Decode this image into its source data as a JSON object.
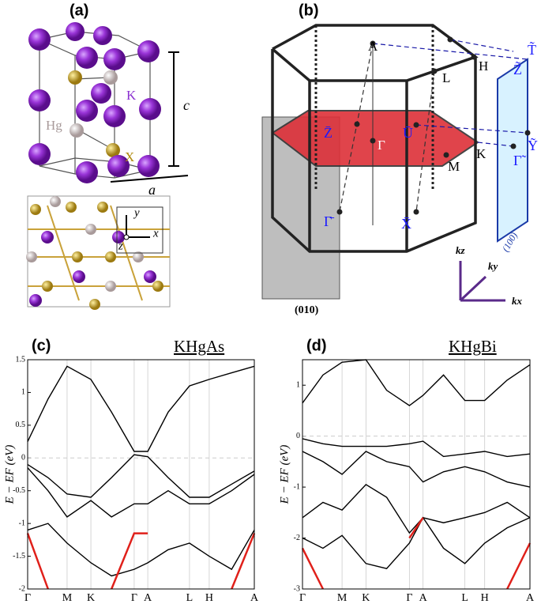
{
  "panel_a": {
    "label": "(a)",
    "c": "c",
    "a": "a",
    "atoms": {
      "K": "K",
      "Hg": "Hg",
      "X": "X"
    },
    "axes": {
      "y": "y",
      "x": "x",
      "z": "z"
    }
  },
  "panel_b": {
    "label": "(b)",
    "points": [
      "A",
      "L",
      "H",
      "K",
      "M",
      "Γ"
    ],
    "surface_points": [
      "Z̄",
      "Ū",
      "X̄",
      "Γ̄"
    ],
    "side_points": [
      "T̃",
      "Z̃",
      "Ỹ",
      "Γ̃"
    ],
    "planes": [
      "(010)",
      "(100)"
    ],
    "axes": [
      "kz",
      "ky",
      "kx"
    ]
  },
  "chart_data": [
    {
      "type": "line",
      "panel": "(c)",
      "title": "KHgAs",
      "ylabel": "E − EF (eV)",
      "x": [
        0,
        0.09,
        0.174,
        0.279,
        0.37,
        0.47,
        0.53,
        0.62,
        0.714,
        0.801,
        0.9,
        1
      ],
      "xlim": [
        0,
        1
      ],
      "xticks": [
        {
          "value": 0,
          "label": "Γ"
        },
        {
          "value": 0.174,
          "label": "M"
        },
        {
          "value": 0.279,
          "label": "K"
        },
        {
          "value": 0.47,
          "label": "Γ"
        },
        {
          "value": 0.53,
          "label": "A"
        },
        {
          "value": 0.714,
          "label": "L"
        },
        {
          "value": 0.801,
          "label": "H"
        },
        {
          "value": 1,
          "label": "A"
        }
      ],
      "ylim": [
        -2,
        1.5
      ],
      "yticks": [
        1.5,
        1,
        0.5,
        0,
        -0.5,
        -1,
        -1.5,
        -2
      ],
      "series": [
        {
          "color": "#000000",
          "values": [
            0.25,
            0.9,
            1.4,
            1.2,
            0.7,
            0.1,
            0.1,
            0.7,
            1.1,
            1.2,
            1.3,
            1.4
          ]
        },
        {
          "color": "#000000",
          "values": [
            -0.1,
            -0.3,
            -0.55,
            -0.6,
            -0.3,
            0.05,
            0.02,
            -0.3,
            -0.6,
            -0.6,
            -0.4,
            -0.2
          ]
        },
        {
          "color": "#000000",
          "values": [
            -0.15,
            -0.5,
            -0.9,
            -0.65,
            -0.9,
            -0.7,
            -0.7,
            -0.5,
            -0.7,
            -0.7,
            -0.5,
            -0.25
          ]
        },
        {
          "color": "#000000",
          "values": [
            -1.1,
            -1.0,
            -1.3,
            -1.6,
            -1.8,
            -1.7,
            -1.6,
            -1.4,
            -1.3,
            -1.5,
            -1.7,
            -1.1
          ]
        },
        {
          "color": "#e0201a",
          "values": [
            -1.15,
            -2,
            null,
            null,
            -2,
            -1.15,
            -1.15,
            null,
            null,
            null,
            -2,
            -1.15
          ]
        }
      ]
    },
    {
      "type": "line",
      "panel": "(d)",
      "title": "KHgBi",
      "ylabel": "E − EF (eV)",
      "x": [
        0,
        0.09,
        0.174,
        0.279,
        0.37,
        0.47,
        0.53,
        0.62,
        0.714,
        0.801,
        0.9,
        1
      ],
      "xlim": [
        0,
        1
      ],
      "xticks": [
        {
          "value": 0,
          "label": "Γ"
        },
        {
          "value": 0.174,
          "label": "M"
        },
        {
          "value": 0.279,
          "label": "K"
        },
        {
          "value": 0.47,
          "label": "Γ"
        },
        {
          "value": 0.53,
          "label": "A"
        },
        {
          "value": 0.714,
          "label": "L"
        },
        {
          "value": 0.801,
          "label": "H"
        },
        {
          "value": 1,
          "label": "A"
        }
      ],
      "ylim": [
        -3,
        1.5
      ],
      "yticks": [
        1,
        0,
        -1,
        -2,
        -3
      ],
      "series": [
        {
          "color": "#000000",
          "values": [
            0.65,
            1.2,
            1.45,
            1.5,
            0.9,
            0.6,
            0.8,
            1.2,
            0.7,
            0.7,
            1.1,
            1.4
          ]
        },
        {
          "color": "#000000",
          "values": [
            -0.05,
            -0.15,
            -0.2,
            -0.2,
            -0.2,
            -0.15,
            -0.1,
            -0.4,
            -0.35,
            -0.3,
            -0.4,
            -0.35
          ]
        },
        {
          "color": "#000000",
          "values": [
            -0.3,
            -0.5,
            -0.75,
            -0.3,
            -0.5,
            -0.6,
            -0.9,
            -0.7,
            -0.6,
            -0.7,
            -0.9,
            -1
          ]
        },
        {
          "color": "#000000",
          "values": [
            -1.6,
            -1.3,
            -1.45,
            -0.95,
            -1.2,
            -1.9,
            -1.6,
            -1.7,
            -1.6,
            -1.5,
            -1.3,
            -1.6
          ]
        },
        {
          "color": "#000000",
          "values": [
            -2,
            -2.2,
            -1.95,
            -2.5,
            -2.6,
            -2.1,
            -1.6,
            -2.2,
            -2.5,
            -2.1,
            -1.8,
            -1.6
          ]
        },
        {
          "color": "#e0201a",
          "values": [
            -2.2,
            -3,
            null,
            null,
            null,
            -2,
            -1.6,
            null,
            null,
            null,
            -3,
            -2.1
          ]
        }
      ]
    }
  ]
}
